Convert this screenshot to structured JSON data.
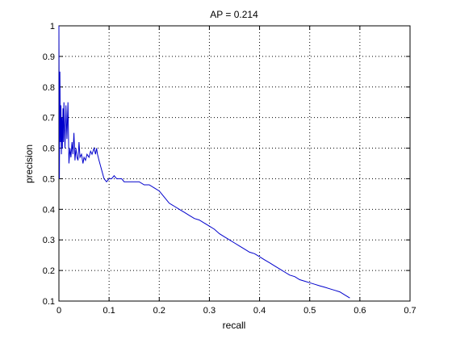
{
  "chart_data": {
    "type": "line",
    "title": "AP = 0.214",
    "xlabel": "recall",
    "ylabel": "precision",
    "xlim": [
      0,
      0.7
    ],
    "ylim": [
      0.1,
      1
    ],
    "xticks": [
      "0",
      "0.1",
      "0.2",
      "0.3",
      "0.4",
      "0.5",
      "0.6",
      "0.7"
    ],
    "yticks": [
      "0.1",
      "0.2",
      "0.3",
      "0.4",
      "0.5",
      "0.6",
      "0.7",
      "0.8",
      "0.9",
      "1"
    ],
    "grid": true,
    "line_color": "#0000cc",
    "series": [
      {
        "x": [
          0.0,
          0.001,
          0.002,
          0.003,
          0.004,
          0.005,
          0.006,
          0.007,
          0.008,
          0.009,
          0.01,
          0.012,
          0.014,
          0.016,
          0.018,
          0.02,
          0.022,
          0.024,
          0.026,
          0.028,
          0.03,
          0.032,
          0.034,
          0.036,
          0.038,
          0.04,
          0.042,
          0.045,
          0.048,
          0.05,
          0.053,
          0.056,
          0.06,
          0.063,
          0.066,
          0.07,
          0.073,
          0.075,
          0.077,
          0.08,
          0.085,
          0.09,
          0.095,
          0.1,
          0.105,
          0.11,
          0.115,
          0.12,
          0.125,
          0.13,
          0.135,
          0.14,
          0.15,
          0.16,
          0.17,
          0.18,
          0.19,
          0.2,
          0.21,
          0.22,
          0.23,
          0.24,
          0.25,
          0.26,
          0.27,
          0.28,
          0.29,
          0.3,
          0.31,
          0.32,
          0.33,
          0.34,
          0.35,
          0.36,
          0.37,
          0.38,
          0.39,
          0.4,
          0.41,
          0.42,
          0.43,
          0.44,
          0.45,
          0.46,
          0.47,
          0.48,
          0.49,
          0.5,
          0.51,
          0.52,
          0.53,
          0.54,
          0.55,
          0.56,
          0.57,
          0.58
        ],
        "y": [
          1.0,
          0.5,
          0.85,
          0.62,
          0.74,
          0.58,
          0.7,
          0.6,
          0.73,
          0.62,
          0.75,
          0.6,
          0.74,
          0.63,
          0.75,
          0.55,
          0.6,
          0.57,
          0.62,
          0.58,
          0.65,
          0.56,
          0.6,
          0.57,
          0.56,
          0.62,
          0.57,
          0.58,
          0.55,
          0.57,
          0.56,
          0.58,
          0.57,
          0.59,
          0.58,
          0.6,
          0.58,
          0.6,
          0.58,
          0.56,
          0.53,
          0.5,
          0.49,
          0.5,
          0.5,
          0.51,
          0.5,
          0.5,
          0.5,
          0.49,
          0.49,
          0.49,
          0.49,
          0.49,
          0.48,
          0.48,
          0.47,
          0.46,
          0.44,
          0.42,
          0.41,
          0.4,
          0.39,
          0.38,
          0.37,
          0.365,
          0.355,
          0.345,
          0.335,
          0.32,
          0.31,
          0.3,
          0.29,
          0.28,
          0.27,
          0.26,
          0.255,
          0.245,
          0.235,
          0.225,
          0.215,
          0.205,
          0.195,
          0.185,
          0.18,
          0.17,
          0.165,
          0.16,
          0.155,
          0.15,
          0.145,
          0.14,
          0.135,
          0.13,
          0.12,
          0.11
        ]
      }
    ]
  }
}
